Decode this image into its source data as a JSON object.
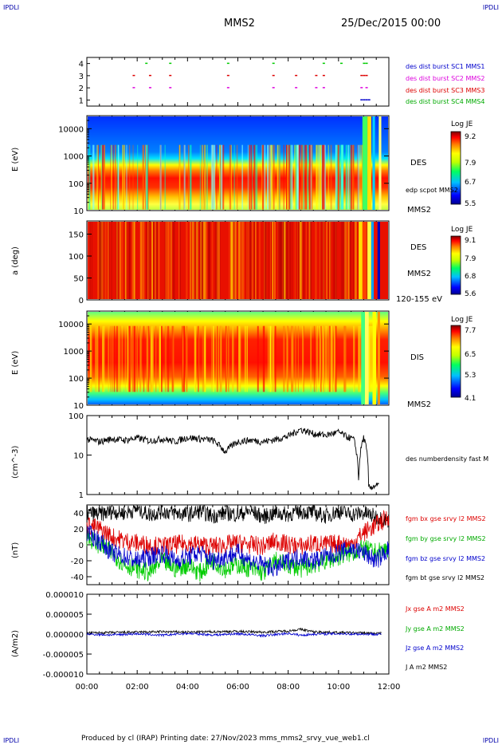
{
  "header": {
    "corner_left_top": "IPDLI",
    "corner_right_top": "IPDLI",
    "title": "MMS2",
    "date": "25/Dec/2015 00:00"
  },
  "footer": {
    "text": "Produced by cl (IRAP)   Printing date: 27/Nov/2023   mms_mms2_srvy_vue_web1.cl",
    "corner_left_bottom": "IPDLI",
    "corner_right_bottom": "IPDLI"
  },
  "colors": {
    "blue": "#0000cc",
    "magenta": "#dd00dd",
    "red": "#dd0000",
    "green": "#00cc00",
    "black": "#000000"
  },
  "chart_data": [
    {
      "type": "scatter",
      "panel": "burst",
      "yticks": [
        "1",
        "2",
        "3",
        "4"
      ],
      "ylim": [
        0.5,
        4.5
      ],
      "legend": [
        {
          "text": "des dist burst SC1 MMS1",
          "color": "#0000cc"
        },
        {
          "text": "des dist burst SC2 MMS2",
          "color": "#dd00dd"
        },
        {
          "text": "des dist burst SC3 MMS3",
          "color": "#dd0000"
        },
        {
          "text": "des dist burst SC4 MMS4",
          "color": "#00cc00"
        }
      ],
      "series": [
        {
          "level": 1,
          "color": "#0000cc",
          "x": [
            10.9,
            11.0,
            11.1,
            11.2
          ]
        },
        {
          "level": 2,
          "color": "#dd00dd",
          "x": [
            1.85,
            2.5,
            3.3,
            5.6,
            7.4,
            8.3,
            9.1,
            9.4,
            10.9,
            11.1
          ]
        },
        {
          "level": 3,
          "color": "#dd0000",
          "x": [
            1.85,
            2.5,
            3.3,
            5.6,
            7.4,
            8.3,
            9.1,
            9.4,
            10.9,
            11.0,
            11.1
          ]
        },
        {
          "level": 4,
          "color": "#00cc00",
          "x": [
            2.35,
            3.3,
            5.6,
            7.4,
            9.4,
            10.1,
            11.0,
            11.1
          ]
        }
      ]
    },
    {
      "type": "heatmap",
      "panel": "des-energy",
      "ylabel": "E (eV)",
      "yticks": [
        "10",
        "100",
        "1000",
        "10000"
      ],
      "ylim": [
        10,
        30000
      ],
      "side_label": "DES",
      "sub_label": "edp scpot MMS2",
      "spacecraft": "MMS2",
      "colorbar": {
        "title": "Log JE",
        "ticks": [
          "9.2",
          "7.9",
          "6.7",
          "5.5"
        ],
        "min": 5.5,
        "max": 9.6
      }
    },
    {
      "type": "heatmap",
      "panel": "des-pitch",
      "ylabel": "a (deg)",
      "yticks": [
        "0",
        "50",
        "100",
        "150"
      ],
      "ylim": [
        0,
        180
      ],
      "side_label": "DES",
      "spacecraft": "MMS2",
      "energy_range": "120-155 eV",
      "colorbar": {
        "title": "Log JE",
        "ticks": [
          "9.1",
          "7.9",
          "6.8",
          "5.6"
        ],
        "min": 5.6,
        "max": 9.5
      }
    },
    {
      "type": "heatmap",
      "panel": "dis-energy",
      "ylabel": "E (eV)",
      "yticks": [
        "10",
        "100",
        "1000",
        "10000"
      ],
      "ylim": [
        10,
        30000
      ],
      "side_label": "DIS",
      "spacecraft": "MMS2",
      "colorbar": {
        "title": "Log JE",
        "ticks": [
          "7.7",
          "6.5",
          "5.3",
          "4.1"
        ],
        "min": 4.1,
        "max": 8.1
      }
    },
    {
      "type": "line",
      "panel": "density",
      "ylabel": "(cm^-3)",
      "yticks": [
        "1",
        "10",
        "100"
      ],
      "ylim": [
        1,
        100
      ],
      "legend": [
        {
          "text": "des numberdensity fast M",
          "color": "#000000"
        }
      ],
      "x": [
        0.0,
        0.5,
        1.0,
        1.5,
        2.0,
        2.5,
        3.0,
        3.5,
        4.0,
        4.5,
        5.0,
        5.5,
        6.0,
        6.5,
        7.0,
        7.5,
        8.0,
        8.5,
        9.0,
        9.5,
        10.0,
        10.3,
        10.6,
        10.8,
        11.0,
        11.2,
        11.5
      ],
      "values": [
        25,
        22,
        26,
        24,
        27,
        23,
        26,
        22,
        28,
        26,
        24,
        12,
        22,
        24,
        22,
        25,
        30,
        45,
        35,
        32,
        38,
        30,
        25,
        2,
        28,
        1.5,
        1.7
      ]
    },
    {
      "type": "line",
      "panel": "fgm",
      "ylabel": "(nT)",
      "yticks": [
        "-40",
        "-20",
        "0",
        "20",
        "40"
      ],
      "ylim": [
        -50,
        50
      ],
      "legend": [
        {
          "text": "fgm bx gse srvy l2 MMS2",
          "color": "#dd0000"
        },
        {
          "text": "fgm by gse srvy l2 MMS2",
          "color": "#00cc00"
        },
        {
          "text": "fgm bz gse srvy l2 MMS2",
          "color": "#0000cc"
        },
        {
          "text": "fgm bt gse srvy l2 MMS2",
          "color": "#000000"
        }
      ],
      "x": [
        0.0,
        0.5,
        1.0,
        1.5,
        2.0,
        2.5,
        3.0,
        3.5,
        4.0,
        4.5,
        5.0,
        5.5,
        6.0,
        6.5,
        7.0,
        7.5,
        8.0,
        8.5,
        9.0,
        9.5,
        10.0,
        10.5,
        11.0,
        11.5,
        12.0
      ],
      "series": [
        {
          "name": "fgm bx gse srvy l2 MMS2",
          "color": "#dd0000",
          "values": [
            25,
            20,
            10,
            5,
            2,
            0,
            -2,
            0,
            2,
            0,
            -2,
            0,
            2,
            0,
            -2,
            5,
            0,
            -2,
            2,
            0,
            2,
            0,
            15,
            25,
            35
          ]
        },
        {
          "name": "fgm by gse srvy l2 MMS2",
          "color": "#00cc00",
          "values": [
            10,
            0,
            -10,
            -25,
            -30,
            -35,
            -20,
            -30,
            -25,
            -35,
            -20,
            -30,
            -25,
            -30,
            -35,
            -20,
            -25,
            -30,
            -25,
            -20,
            -15,
            -10,
            -5,
            -10,
            -5
          ]
        },
        {
          "name": "fgm bz gse srvy l2 MMS2",
          "color": "#0000cc",
          "values": [
            15,
            5,
            -10,
            -15,
            -20,
            -15,
            -10,
            -20,
            -15,
            -10,
            -20,
            -15,
            -10,
            -20,
            -25,
            -30,
            -20,
            -15,
            -20,
            -15,
            -10,
            -5,
            -10,
            -20,
            -5
          ]
        },
        {
          "name": "fgm bt gse srvy l2 MMS2",
          "color": "#000000",
          "values": [
            40,
            38,
            42,
            40,
            45,
            38,
            42,
            40,
            38,
            42,
            36,
            40,
            38,
            42,
            35,
            40,
            38,
            42,
            40,
            36,
            42,
            38,
            40,
            35,
            30
          ]
        }
      ]
    },
    {
      "type": "line",
      "panel": "current",
      "ylabel": "(A/m2)",
      "yticks": [
        "-0.000010",
        "-0.000005",
        "0.000000",
        "0.000005",
        "0.000010"
      ],
      "ylim": [
        -1e-05,
        1e-05
      ],
      "legend": [
        {
          "text": "Jx gse A m2 MMS2",
          "color": "#dd0000"
        },
        {
          "text": "Jy gse A m2 MMS2",
          "color": "#00cc00"
        },
        {
          "text": "Jz gse A m2 MMS2",
          "color": "#0000cc"
        },
        {
          "text": "J A m2 MMS2",
          "color": "#000000"
        }
      ],
      "x": [
        0.0,
        1.0,
        2.0,
        3.0,
        4.0,
        5.0,
        6.0,
        7.0,
        8.0,
        8.5,
        9.0,
        10.0,
        11.0,
        11.5
      ],
      "series": [
        {
          "name": "J A m2 MMS2",
          "color": "#000000",
          "values": [
            3e-07,
            4e-07,
            5e-07,
            6e-07,
            5e-07,
            6e-07,
            7e-07,
            5e-07,
            8e-07,
            1.2e-06,
            6e-07,
            4e-07,
            3e-07,
            2e-07
          ]
        },
        {
          "name": "Jz gse A m2 MMS2",
          "color": "#0000cc",
          "values": [
            0.0,
            -2e-07,
            1e-07,
            -3e-07,
            2e-07,
            -2e-07,
            1e-07,
            -4e-07,
            2e-07,
            -3e-07,
            0.0,
            1e-07,
            0.0,
            0.0
          ]
        }
      ]
    }
  ],
  "xaxis": {
    "ticks": [
      "00:00",
      "02:00",
      "04:00",
      "06:00",
      "08:00",
      "10:00",
      "12:00"
    ],
    "xlim": [
      0,
      12
    ]
  }
}
